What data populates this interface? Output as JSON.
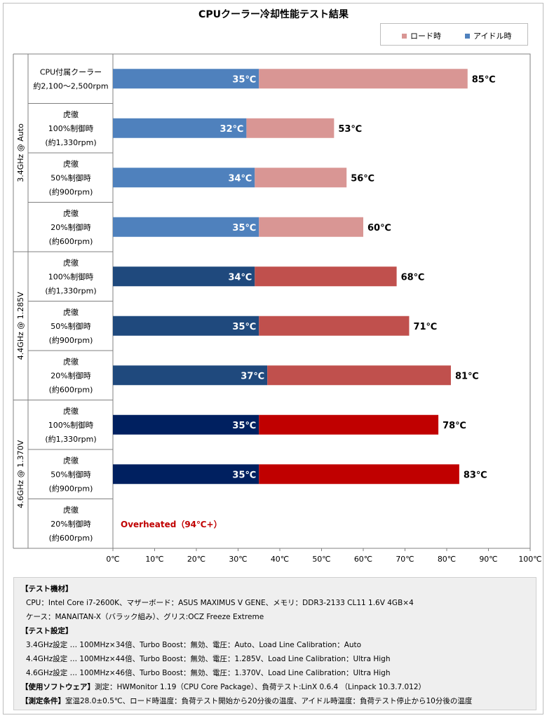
{
  "chart_data": {
    "type": "bar",
    "title": "CPUクーラー冷却性能テスト結果",
    "legend": [
      {
        "name": "ロード時",
        "color": "#d99694"
      },
      {
        "name": "アイドル時",
        "color": "#4f81bd"
      }
    ],
    "xlim": [
      0,
      100
    ],
    "x_ticks": [
      "0℃",
      "10℃",
      "20℃",
      "30℃",
      "40℃",
      "50℃",
      "60℃",
      "70℃",
      "80℃",
      "90℃",
      "100℃"
    ],
    "groups": [
      {
        "label": "3.4GHz @ Auto",
        "rows": 4
      },
      {
        "label": "4.4GHz @ 1.285V",
        "rows": 3
      },
      {
        "label": "4.6GHz @ 1.370V",
        "rows": 3
      }
    ],
    "rows": [
      {
        "label": [
          "CPU付属クーラー",
          "約2,100～2,500rpm"
        ],
        "idle": 35,
        "load": 85,
        "idle_label": "35℃",
        "load_label": "85℃",
        "idle_color": "#4f81bd",
        "load_color": "#d99694"
      },
      {
        "label": [
          "虎徹",
          "100%制御時",
          "(約1,330rpm)"
        ],
        "idle": 32,
        "load": 53,
        "idle_label": "32℃",
        "load_label": "53℃",
        "idle_color": "#4f81bd",
        "load_color": "#d99694"
      },
      {
        "label": [
          "虎徹",
          "50%制御時",
          "(約900rpm)"
        ],
        "idle": 34,
        "load": 56,
        "idle_label": "34℃",
        "load_label": "56℃",
        "idle_color": "#4f81bd",
        "load_color": "#d99694"
      },
      {
        "label": [
          "虎徹",
          "20%制御時",
          "(約600rpm)"
        ],
        "idle": 35,
        "load": 60,
        "idle_label": "35℃",
        "load_label": "60℃",
        "idle_color": "#4f81bd",
        "load_color": "#d99694"
      },
      {
        "label": [
          "虎徹",
          "100%制御時",
          "(約1,330rpm)"
        ],
        "idle": 34,
        "load": 68,
        "idle_label": "34℃",
        "load_label": "68℃",
        "idle_color": "#1f497d",
        "load_color": "#c0504d"
      },
      {
        "label": [
          "虎徹",
          "50%制御時",
          "(約900rpm)"
        ],
        "idle": 35,
        "load": 71,
        "idle_label": "35℃",
        "load_label": "71℃",
        "idle_color": "#1f497d",
        "load_color": "#c0504d"
      },
      {
        "label": [
          "虎徹",
          "20%制御時",
          "(約600rpm)"
        ],
        "idle": 37,
        "load": 81,
        "idle_label": "37℃",
        "load_label": "81℃",
        "idle_color": "#1f497d",
        "load_color": "#c0504d"
      },
      {
        "label": [
          "虎徹",
          "100%制御時",
          "(約1,330rpm)"
        ],
        "idle": 35,
        "load": 78,
        "idle_label": "35℃",
        "load_label": "78℃",
        "idle_color": "#002060",
        "load_color": "#c00000"
      },
      {
        "label": [
          "虎徹",
          "50%制御時",
          "(約900rpm)"
        ],
        "idle": 35,
        "load": 83,
        "idle_label": "35℃",
        "load_label": "83℃",
        "idle_color": "#002060",
        "load_color": "#c00000"
      },
      {
        "label": [
          "虎徹",
          "20%制御時",
          "(約600rpm)"
        ],
        "idle": null,
        "load": null,
        "note": "Overheated（94℃+）",
        "note_color": "#c00000"
      }
    ]
  },
  "notes": {
    "equipment_heading": "【テスト機材】",
    "equipment_line1": "CPU：Intel Core i7-2600K、マザーボード：ASUS MAXIMUS V GENE、メモリ：DDR3-2133 CL11 1.6V 4GB×4",
    "equipment_line2": "ケース：MANAITAN-X（バラック組み）、グリス:OCZ Freeze Extreme",
    "settings_heading": "【テスト設定】",
    "settings_line1": "3.4GHz設定 … 100MHz×34倍、Turbo Boost：無効、電圧：Auto、Load Line Calibration：Auto",
    "settings_line2": "4.4GHz設定 … 100MHz×44倍、Turbo Boost：無効、電圧：1.285V、Load Line Calibration：Ultra High",
    "settings_line3": "4.6GHz設定 … 100MHz×46倍、Turbo Boost：無効、電圧：1.370V、Load Line Calibration：Ultra High",
    "software_heading": "【使用ソフトウェア】",
    "software_text": "測定：HWMonitor 1.19（CPU Core Package）、負荷テスト:LinX 0.6.4 （Linpack 10.3.7.012）",
    "conditions_heading": "【測定条件】",
    "conditions_text": "室温28.0±0.5℃、ロード時温度：負荷テスト開始から20分後の温度、アイドル時温度：負荷テスト停止から10分後の温度"
  }
}
